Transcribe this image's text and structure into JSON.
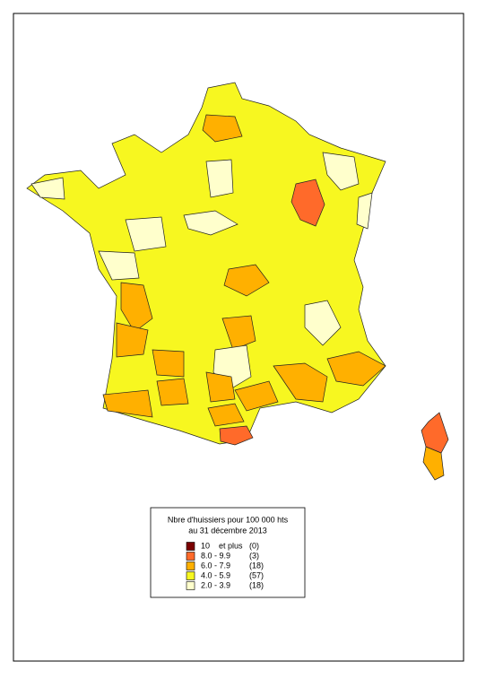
{
  "legend": {
    "title_line1": "Nbre d'huissiers pour 100 000 hts",
    "title_line2": "au 31 décembre 2013",
    "entries": [
      {
        "label": "10    et plus",
        "count": "(0)",
        "color": "#7a0000"
      },
      {
        "label": "8.0 - 9.9",
        "count": "(3)",
        "color": "#ff6a2a"
      },
      {
        "label": "6.0 - 7.9",
        "count": "(18)",
        "color": "#ffb000"
      },
      {
        "label": "4.0 - 5.9",
        "count": "(57)",
        "color": "#f7f720"
      },
      {
        "label": "2.0 - 3.9",
        "count": "(18)",
        "color": "#ffffcc"
      }
    ]
  }
}
